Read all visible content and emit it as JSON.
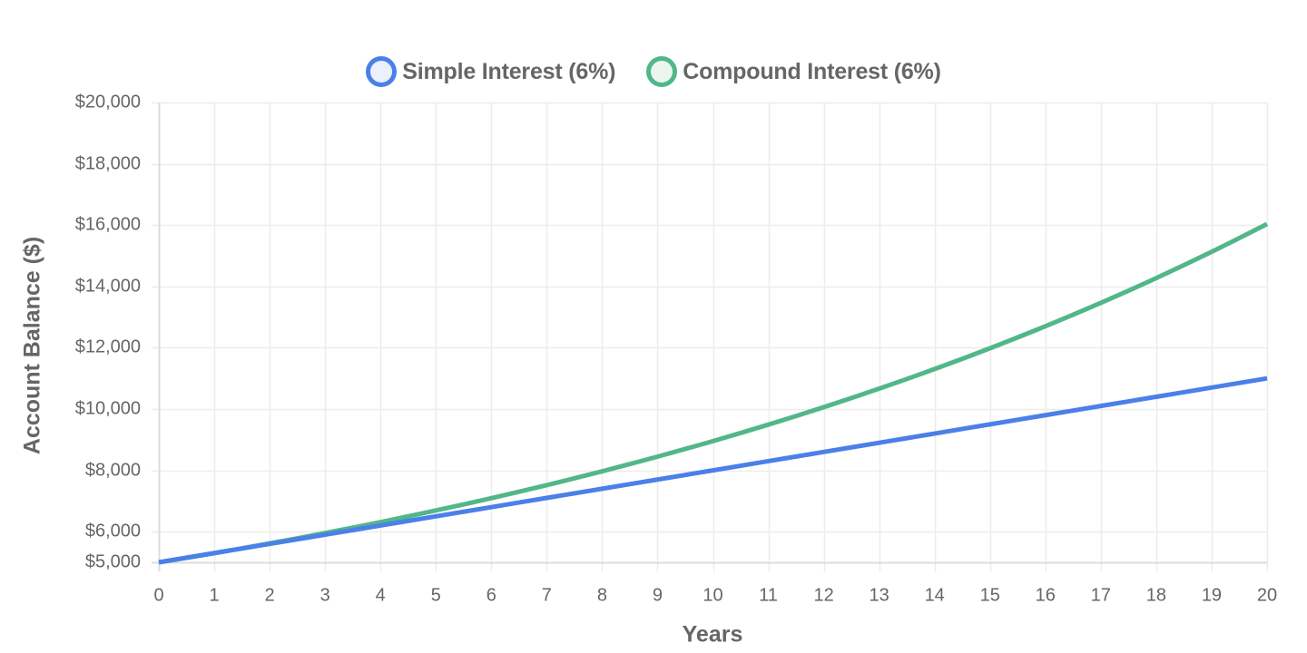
{
  "chart_data": {
    "type": "line",
    "title": "",
    "xlabel": "Years",
    "ylabel": "Account Balance ($)",
    "x": [
      0,
      1,
      2,
      3,
      4,
      5,
      6,
      7,
      8,
      9,
      10,
      11,
      12,
      13,
      14,
      15,
      16,
      17,
      18,
      19,
      20
    ],
    "xlim": [
      0,
      20
    ],
    "ylim": [
      5000,
      20000
    ],
    "y_ticks": [
      5000,
      6000,
      8000,
      10000,
      12000,
      14000,
      16000,
      18000,
      20000
    ],
    "y_tick_labels": [
      "$5,000",
      "$6,000",
      "$8,000",
      "$10,000",
      "$12,000",
      "$14,000",
      "$16,000",
      "$18,000",
      "$20,000"
    ],
    "x_tick_labels": [
      "0",
      "1",
      "2",
      "3",
      "4",
      "5",
      "6",
      "7",
      "8",
      "9",
      "10",
      "11",
      "12",
      "13",
      "14",
      "15",
      "16",
      "17",
      "18",
      "19",
      "20"
    ],
    "grid": true,
    "legend_position": "top",
    "series": [
      {
        "name": "Simple Interest (6%)",
        "color": "#4a80e8",
        "fill": "#ebf0fb",
        "values": [
          5000,
          5300,
          5600,
          5900,
          6200,
          6500,
          6800,
          7100,
          7400,
          7700,
          8000,
          8300,
          8600,
          8900,
          9200,
          9500,
          9800,
          10100,
          10400,
          10700,
          11000
        ]
      },
      {
        "name": "Compound Interest (6%)",
        "color": "#52b788",
        "fill": "#ebf6f1",
        "values": [
          5000,
          5300,
          5618,
          5955.08,
          6312.38,
          6691.13,
          7092.6,
          7518.15,
          7969.24,
          8447.39,
          8954.24,
          9491.49,
          10060.98,
          10664.64,
          11304.52,
          11982.79,
          12701.76,
          13463.86,
          14271.7,
          15128.0,
          16035.68
        ]
      }
    ]
  },
  "legend": {
    "items": [
      {
        "label": "Simple Interest (6%)"
      },
      {
        "label": "Compound Interest (6%)"
      }
    ]
  }
}
